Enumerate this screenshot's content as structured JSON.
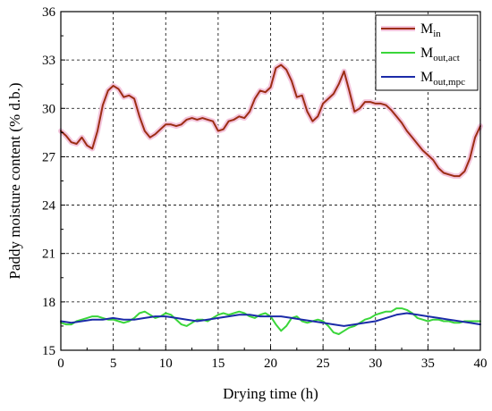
{
  "chart_data": {
    "type": "line",
    "title": "",
    "xlabel": "Drying time (h)",
    "ylabel": "Paddy moisture content (% d.b.)",
    "xlim": [
      0,
      40
    ],
    "ylim": [
      15,
      36
    ],
    "xticks": [
      0,
      5,
      10,
      15,
      20,
      25,
      30,
      35,
      40
    ],
    "yticks": [
      15,
      18,
      21,
      24,
      27,
      30,
      33,
      36
    ],
    "grid": true,
    "legend_placement": "top-right",
    "series": [
      {
        "name": "M",
        "name_sub": "in",
        "color": "#9c2d14",
        "halo_color": "#f4c6dd",
        "x": [
          0,
          0.5,
          1,
          1.5,
          2,
          2.5,
          3,
          3.5,
          4,
          4.5,
          5,
          5.5,
          6,
          6.5,
          7,
          7.5,
          8,
          8.5,
          9,
          9.5,
          10,
          10.5,
          11,
          11.5,
          12,
          12.5,
          13,
          13.5,
          14,
          14.5,
          15,
          15.5,
          16,
          16.5,
          17,
          17.5,
          18,
          18.5,
          19,
          19.5,
          20,
          20.5,
          21,
          21.5,
          22,
          22.5,
          23,
          23.5,
          24,
          24.5,
          25,
          25.5,
          26,
          26.5,
          27,
          27.5,
          28,
          28.5,
          29,
          29.5,
          30,
          30.5,
          31,
          31.5,
          32,
          32.5,
          33,
          33.5,
          34,
          34.5,
          35,
          35.5,
          36,
          36.5,
          37,
          37.5,
          38,
          38.5,
          39,
          39.5,
          40
        ],
        "values": [
          28.6,
          28.3,
          27.9,
          27.8,
          28.2,
          27.7,
          27.5,
          28.6,
          30.2,
          31.1,
          31.4,
          31.2,
          30.7,
          30.8,
          30.6,
          29.5,
          28.6,
          28.2,
          28.4,
          28.7,
          29.0,
          29.0,
          28.9,
          29.0,
          29.3,
          29.4,
          29.3,
          29.4,
          29.3,
          29.2,
          28.6,
          28.7,
          29.2,
          29.3,
          29.5,
          29.4,
          29.8,
          30.6,
          31.1,
          31.0,
          31.3,
          32.5,
          32.7,
          32.4,
          31.7,
          30.7,
          30.8,
          29.8,
          29.2,
          29.5,
          30.3,
          30.6,
          30.9,
          31.5,
          32.3,
          31.1,
          29.8,
          30.0,
          30.4,
          30.4,
          30.3,
          30.3,
          30.2,
          29.9,
          29.5,
          29.1,
          28.6,
          28.2,
          27.8,
          27.4,
          27.1,
          26.8,
          26.3,
          26.0,
          25.9,
          25.8,
          25.8,
          26.1,
          26.9,
          28.2,
          28.9
        ]
      },
      {
        "name": "M",
        "name_sub": "out,act",
        "color": "#3ad63a",
        "halo_color": "",
        "x": [
          0,
          0.5,
          1,
          1.5,
          2,
          2.5,
          3,
          3.5,
          4,
          4.5,
          5,
          5.5,
          6,
          6.5,
          7,
          7.5,
          8,
          8.5,
          9,
          9.5,
          10,
          10.5,
          11,
          11.5,
          12,
          12.5,
          13,
          13.5,
          14,
          14.5,
          15,
          15.5,
          16,
          16.5,
          17,
          17.5,
          18,
          18.5,
          19,
          19.5,
          20,
          20.5,
          21,
          21.5,
          22,
          22.5,
          23,
          23.5,
          24,
          24.5,
          25,
          25.5,
          26,
          26.5,
          27,
          27.5,
          28,
          28.5,
          29,
          29.5,
          30,
          30.5,
          31,
          31.5,
          32,
          32.5,
          33,
          33.5,
          34,
          34.5,
          35,
          35.5,
          36,
          36.5,
          37,
          37.5,
          38,
          38.5,
          39,
          39.5,
          40
        ],
        "values": [
          16.7,
          16.6,
          16.6,
          16.8,
          16.9,
          17.0,
          17.1,
          17.1,
          17.0,
          16.9,
          16.9,
          16.8,
          16.7,
          16.8,
          17.0,
          17.3,
          17.4,
          17.2,
          17.0,
          17.1,
          17.3,
          17.2,
          16.9,
          16.6,
          16.5,
          16.7,
          16.9,
          16.9,
          16.8,
          17.0,
          17.2,
          17.3,
          17.2,
          17.3,
          17.4,
          17.3,
          17.1,
          17.0,
          17.2,
          17.3,
          17.1,
          16.6,
          16.2,
          16.5,
          17.0,
          17.1,
          16.8,
          16.7,
          16.8,
          16.9,
          16.8,
          16.5,
          16.1,
          16.0,
          16.2,
          16.4,
          16.5,
          16.7,
          16.9,
          17.0,
          17.2,
          17.3,
          17.4,
          17.4,
          17.6,
          17.6,
          17.5,
          17.3,
          17.0,
          16.9,
          16.8,
          16.9,
          16.9,
          16.8,
          16.8,
          16.7,
          16.7,
          16.8,
          16.8,
          16.8,
          16.8
        ]
      },
      {
        "name": "M",
        "name_sub": "out,mpc",
        "color": "#1b2ba8",
        "halo_color": "",
        "x": [
          0,
          1,
          2,
          3,
          4,
          5,
          6,
          7,
          8,
          9,
          10,
          11,
          12,
          13,
          14,
          15,
          16,
          17,
          18,
          19,
          20,
          21,
          22,
          23,
          24,
          25,
          26,
          27,
          28,
          29,
          30,
          31,
          32,
          33,
          34,
          35,
          36,
          37,
          38,
          39,
          40
        ],
        "values": [
          16.8,
          16.7,
          16.8,
          16.9,
          16.9,
          17.0,
          16.9,
          16.9,
          17.0,
          17.1,
          17.1,
          17.0,
          16.9,
          16.8,
          16.9,
          17.0,
          17.1,
          17.2,
          17.2,
          17.1,
          17.1,
          17.1,
          17.0,
          16.9,
          16.8,
          16.7,
          16.6,
          16.5,
          16.6,
          16.7,
          16.8,
          17.0,
          17.2,
          17.3,
          17.2,
          17.1,
          17.0,
          16.9,
          16.8,
          16.7,
          16.6
        ]
      }
    ]
  }
}
